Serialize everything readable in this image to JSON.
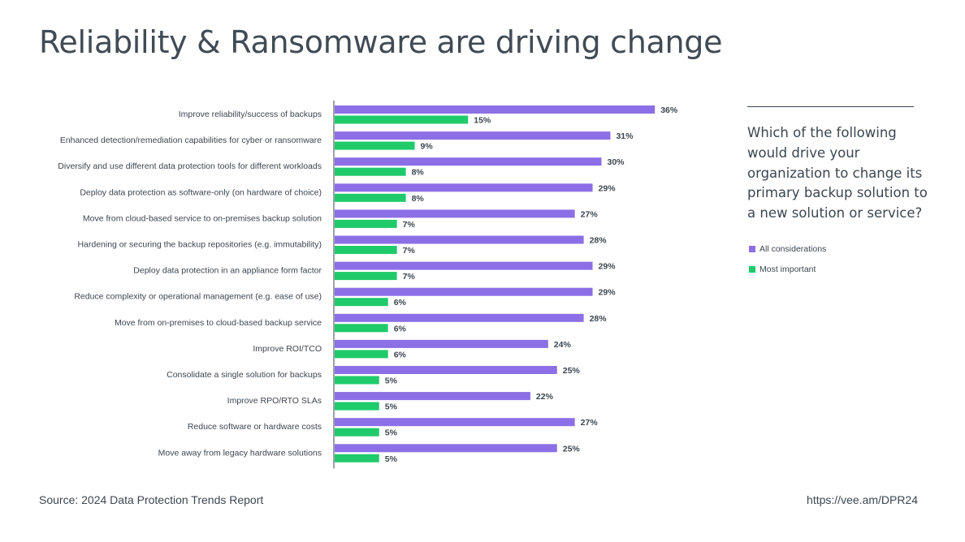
{
  "title": "Reliability & Ransomware are driving change",
  "question": "Which of the following would drive your organization to change its primary backup solution to a new solution or service?",
  "legend": {
    "all": "All considerations",
    "most": "Most important"
  },
  "colors": {
    "all": "#8c6fe6",
    "most": "#1fca6a",
    "text": "#3c4650"
  },
  "footer": {
    "source": "Source: 2024 Data Protection Trends Report",
    "url": "https://vee.am/DPR24"
  },
  "chart_data": {
    "type": "bar",
    "orientation": "horizontal",
    "title": "Reliability & Ransomware are driving change",
    "xlabel": "",
    "ylabel": "",
    "xlim": [
      0,
      40
    ],
    "grid": false,
    "legend_position": "right",
    "categories": [
      "Improve reliability/success of backups",
      "Enhanced detection/remediation capabilities for cyber or ransomware",
      "Diversify and use different data protection tools for different workloads",
      "Deploy data protection as software-only (on hardware of choice)",
      "Move from cloud-based service to on-premises backup solution",
      "Hardening or securing the backup repositories (e.g. immutability)",
      "Deploy data protection in an appliance form factor",
      "Reduce complexity or operational management (e.g. ease of use)",
      "Move from on-premises to cloud-based backup service",
      "Improve ROI/TCO",
      "Consolidate a single solution for backups",
      "Improve RPO/RTO SLAs",
      "Reduce software or hardware costs",
      "Move away from legacy hardware solutions"
    ],
    "series": [
      {
        "name": "All considerations",
        "values": [
          36,
          31,
          30,
          29,
          27,
          28,
          29,
          29,
          28,
          24,
          25,
          22,
          27,
          25
        ],
        "labels": [
          "36%",
          "31%",
          "30%",
          "29%",
          "27%",
          "28%",
          "29%",
          "29%",
          "28%",
          "24%",
          "25%",
          "22%",
          "27%",
          "25%"
        ]
      },
      {
        "name": "Most important",
        "values": [
          15,
          9,
          8,
          8,
          7,
          7,
          7,
          6,
          6,
          6,
          5,
          5,
          5,
          5
        ],
        "labels": [
          "15%",
          "9%",
          "8%",
          "8%",
          "7%",
          "7%",
          "7%",
          "6%",
          "6%",
          "6%",
          "5%",
          "5%",
          "5%",
          "5%"
        ]
      }
    ]
  }
}
